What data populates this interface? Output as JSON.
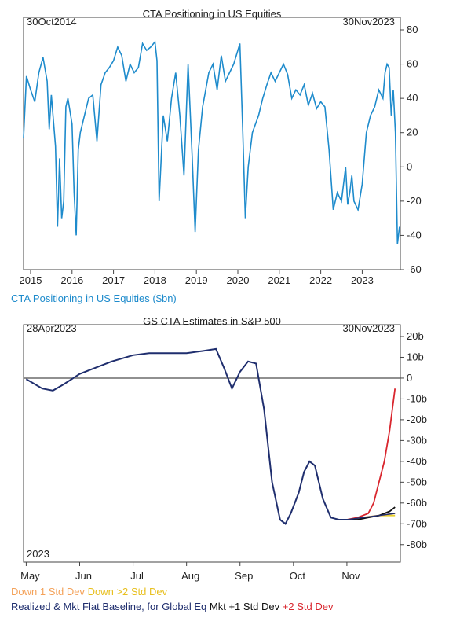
{
  "chart_data": [
    {
      "type": "line",
      "title": "CTA Positioning in US Equities",
      "date_start": "30Oct2014",
      "date_end": "30Nov2023",
      "ylim": [
        -60,
        80
      ],
      "y_ticks": [
        80,
        60,
        40,
        20,
        0,
        -20,
        -40,
        -60
      ],
      "x_ticks": [
        "2015",
        "2016",
        "2017",
        "2018",
        "2019",
        "2020",
        "2021",
        "2022",
        "2023"
      ],
      "series": [
        {
          "name": "CTA Positioning in US Equities ($bn)",
          "color": "#1e8bcc",
          "x": [
            2014.83,
            2014.9,
            2015.0,
            2015.1,
            2015.2,
            2015.3,
            2015.4,
            2015.45,
            2015.5,
            2015.6,
            2015.65,
            2015.7,
            2015.75,
            2015.8,
            2015.85,
            2015.9,
            2016.0,
            2016.05,
            2016.1,
            2016.15,
            2016.2,
            2016.3,
            2016.4,
            2016.5,
            2016.6,
            2016.7,
            2016.8,
            2016.9,
            2017.0,
            2017.1,
            2017.2,
            2017.3,
            2017.4,
            2017.5,
            2017.6,
            2017.7,
            2017.8,
            2017.9,
            2018.0,
            2018.05,
            2018.1,
            2018.2,
            2018.3,
            2018.4,
            2018.5,
            2018.6,
            2018.7,
            2018.8,
            2018.9,
            2018.97,
            2019.05,
            2019.15,
            2019.3,
            2019.4,
            2019.5,
            2019.6,
            2019.7,
            2019.8,
            2019.9,
            2020.0,
            2020.05,
            2020.12,
            2020.18,
            2020.25,
            2020.35,
            2020.5,
            2020.6,
            2020.7,
            2020.8,
            2020.9,
            2021.0,
            2021.1,
            2021.2,
            2021.3,
            2021.4,
            2021.5,
            2021.6,
            2021.7,
            2021.8,
            2021.9,
            2022.0,
            2022.1,
            2022.2,
            2022.3,
            2022.4,
            2022.5,
            2022.6,
            2022.65,
            2022.7,
            2022.75,
            2022.8,
            2022.9,
            2023.0,
            2023.1,
            2023.2,
            2023.3,
            2023.4,
            2023.5,
            2023.55,
            2023.6,
            2023.65,
            2023.7,
            2023.75,
            2023.8,
            2023.85,
            2023.9
          ],
          "y": [
            17,
            53,
            45,
            38,
            55,
            64,
            50,
            22,
            42,
            12,
            -35,
            5,
            -30,
            -20,
            35,
            40,
            25,
            -15,
            -40,
            10,
            20,
            30,
            40,
            42,
            15,
            48,
            55,
            58,
            62,
            70,
            65,
            50,
            60,
            55,
            58,
            72,
            68,
            70,
            73,
            62,
            -20,
            30,
            15,
            40,
            55,
            30,
            -5,
            60,
            5,
            -38,
            10,
            35,
            55,
            60,
            45,
            65,
            50,
            55,
            60,
            68,
            72,
            20,
            -30,
            0,
            20,
            30,
            40,
            48,
            55,
            50,
            55,
            60,
            54,
            40,
            45,
            42,
            48,
            36,
            43,
            34,
            38,
            35,
            10,
            -25,
            -15,
            -20,
            0,
            -22,
            -15,
            -5,
            -20,
            -25,
            -10,
            20,
            30,
            35,
            45,
            40,
            55,
            60,
            58,
            30,
            45,
            20,
            -45,
            -35
          ]
        }
      ]
    },
    {
      "type": "line",
      "title": "GS CTA Estimates in S&P 500",
      "date_start": "28Apr2023",
      "date_end": "30Nov2023",
      "year_label": "2023",
      "ylim": [
        -85,
        20
      ],
      "y_ticks": [
        "20b",
        "10b",
        "0",
        "-10b",
        "-20b",
        "-30b",
        "-40b",
        "-50b",
        "-60b",
        "-70b",
        "-80b"
      ],
      "y_tick_values": [
        20,
        10,
        0,
        -10,
        -20,
        -30,
        -40,
        -50,
        -60,
        -70,
        -80
      ],
      "x_ticks": [
        "May",
        "Jun",
        "Jul",
        "Aug",
        "Sep",
        "Oct",
        "Nov"
      ],
      "series": [
        {
          "name": "Realized & Mkt Flat Baseline, for Global Eq",
          "color": "#1f2e6e",
          "x": [
            0,
            0.3,
            0.5,
            0.7,
            1.0,
            1.3,
            1.6,
            2.0,
            2.3,
            2.6,
            3.0,
            3.3,
            3.55,
            3.7,
            3.85,
            4.0,
            4.15,
            4.3,
            4.45,
            4.6,
            4.75,
            4.85,
            4.95,
            5.1,
            5.2,
            5.3,
            5.4,
            5.55,
            5.7,
            5.85,
            6.0,
            6.1
          ],
          "y": [
            -0.5,
            -5,
            -6,
            -3,
            2,
            5,
            8,
            11,
            12,
            12,
            12,
            13,
            14,
            5,
            -5,
            3,
            8,
            7,
            -15,
            -50,
            -68,
            -70,
            -65,
            -55,
            -45,
            -40,
            -42,
            -58,
            -67,
            -68,
            -68,
            -68
          ]
        },
        {
          "name": "Mkt +1 Std Dev",
          "color": "#111111",
          "x": [
            6.0,
            6.2,
            6.4,
            6.6,
            6.8,
            6.9
          ],
          "y": [
            -68,
            -68,
            -67,
            -66,
            -64,
            -62
          ]
        },
        {
          "name": "+2 Std Dev",
          "color": "#d9262e",
          "x": [
            6.0,
            6.2,
            6.4,
            6.5,
            6.6,
            6.7,
            6.8,
            6.9
          ],
          "y": [
            -68,
            -67,
            -65,
            -60,
            -50,
            -40,
            -25,
            -5
          ]
        },
        {
          "name": "Down 1 Std Dev",
          "color": "#f4a25a",
          "x": [
            6.0,
            6.3,
            6.6,
            6.9
          ],
          "y": [
            -68,
            -67,
            -66,
            -65
          ]
        },
        {
          "name": "Down >2 Std Dev",
          "color": "#e8d02a",
          "x": [
            6.0,
            6.3,
            6.6,
            6.9
          ],
          "y": [
            -68,
            -67,
            -66,
            -66
          ]
        }
      ],
      "baseline_ticks": [
        {
          "name": "Mkt Flat Baseline",
          "color": "#1f2e6e",
          "x": [
            6.0,
            6.9
          ],
          "y": [
            -68,
            -65
          ]
        }
      ]
    }
  ],
  "legend": {
    "down1": "Down 1 Std Dev",
    "down2": "Down >2 Std Dev",
    "baseline": "Realized & Mkt Flat Baseline, for Global Eq",
    "plus1": "Mkt +1 Std Dev",
    "plus2": "+2 Std Dev"
  }
}
